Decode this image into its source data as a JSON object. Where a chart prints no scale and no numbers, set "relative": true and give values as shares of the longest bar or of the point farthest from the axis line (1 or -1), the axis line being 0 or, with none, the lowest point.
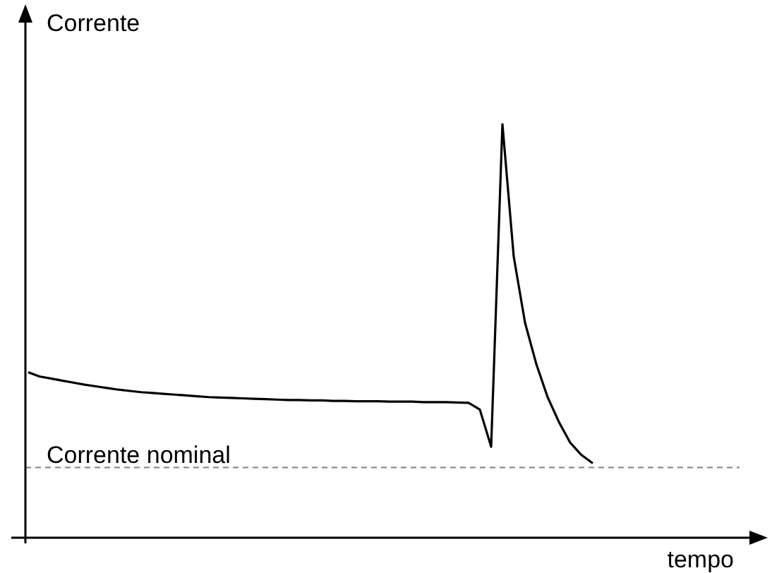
{
  "chart_data": {
    "type": "line",
    "relative": true,
    "xlabel": "tempo",
    "ylabel": "Corrente",
    "categories": [
      null,
      null,
      null,
      null,
      null,
      null,
      null,
      null,
      null,
      null,
      null,
      null,
      null,
      null,
      null,
      null,
      null,
      null,
      null,
      null,
      null,
      null,
      null,
      null,
      null,
      null,
      null,
      null,
      null,
      null,
      null,
      null,
      null,
      null,
      null,
      null,
      null,
      null,
      null,
      null,
      null,
      null,
      null,
      null,
      null,
      null,
      null,
      null,
      null,
      null,
      null,
      null,
      null,
      null,
      null,
      null,
      null,
      null,
      null,
      null,
      null,
      null,
      null,
      null
    ],
    "series": [
      {
        "color": "#000000",
        "values": [
          0.4,
          0.39,
          0.385,
          0.38,
          0.375,
          0.37,
          0.366,
          0.362,
          0.358,
          0.355,
          0.352,
          0.35,
          0.348,
          0.346,
          0.344,
          0.342,
          0.34,
          0.339,
          0.338,
          0.337,
          0.336,
          0.335,
          0.334,
          0.333,
          0.333,
          0.332,
          0.332,
          0.331,
          0.331,
          0.33,
          0.33,
          0.33,
          0.329,
          0.329,
          0.329,
          0.328,
          0.328,
          0.328,
          0.327,
          0.326,
          0.31,
          0.22,
          1.0,
          0.68,
          0.52,
          0.42,
          0.34,
          0.28,
          0.23,
          0.2,
          0.18,
          null,
          null,
          null,
          null,
          null,
          null,
          null,
          null,
          null,
          null,
          null,
          null,
          null
        ]
      }
    ],
    "ref_lines": [
      {
        "axis": "y",
        "value": 0.17,
        "label": "Corrente nominal",
        "color": "#808080",
        "line_style": "dashed"
      }
    ]
  }
}
